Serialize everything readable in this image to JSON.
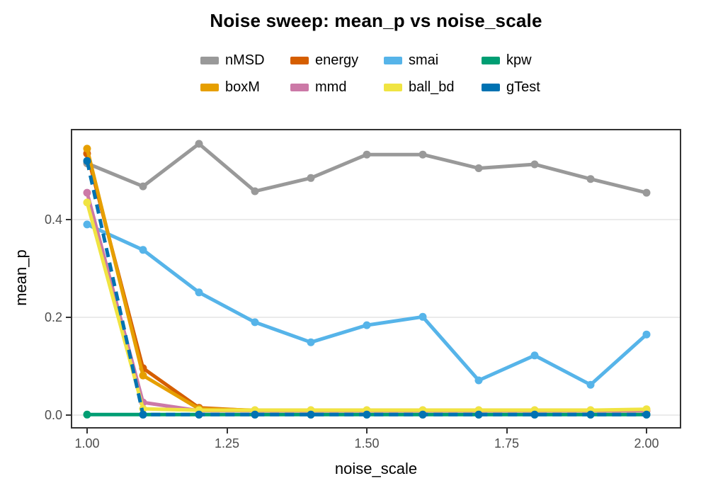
{
  "title": "Noise sweep: mean_p vs noise_scale",
  "colors": {
    "panel_border": "#333333",
    "gridline": "#ebebeb",
    "tick_text": "#4d4d4d",
    "text": "#000000",
    "background": "#ffffff"
  },
  "chart_data": {
    "type": "line",
    "title": "Noise sweep: mean_p vs noise_scale",
    "xlabel": "noise_scale",
    "ylabel": "mean_p",
    "grid": "horizontal-major",
    "legend_position": "top",
    "x": [
      1.0,
      1.1,
      1.2,
      1.3,
      1.4,
      1.5,
      1.6,
      1.7,
      1.8,
      1.9,
      2.0
    ],
    "xlim": [
      0.9734,
      2.0595
    ],
    "ylim": [
      -0.0246,
      0.5826
    ],
    "x_ticks": [
      {
        "value": 1.0,
        "label": "1.00"
      },
      {
        "value": 1.25,
        "label": "1.25"
      },
      {
        "value": 1.5,
        "label": "1.50"
      },
      {
        "value": 1.75,
        "label": "1.75"
      },
      {
        "value": 2.0,
        "label": "2.00"
      }
    ],
    "y_ticks": [
      {
        "value": 0.0,
        "label": "0.0"
      },
      {
        "value": 0.2,
        "label": "0.2"
      },
      {
        "value": 0.4,
        "label": "0.4"
      }
    ],
    "series": [
      {
        "name": "nMSD",
        "color": "#999999",
        "dash": "solid",
        "values": [
          0.515,
          0.468,
          0.555,
          0.458,
          0.485,
          0.533,
          0.533,
          0.505,
          0.513,
          0.483,
          0.455
        ]
      },
      {
        "name": "energy",
        "color": "#D55E00",
        "dash": "solid",
        "values": [
          0.535,
          0.096,
          0.015,
          0.009,
          0.009,
          0.009,
          0.009,
          0.009,
          0.009,
          0.009,
          0.009
        ]
      },
      {
        "name": "smai",
        "color": "#56B4E9",
        "dash": "solid",
        "values": [
          0.39,
          0.338,
          0.251,
          0.19,
          0.149,
          0.184,
          0.201,
          0.071,
          0.122,
          0.062,
          0.165
        ]
      },
      {
        "name": "kpw",
        "color": "#009E73",
        "dash": "solid",
        "values": [
          0.001,
          0.001,
          0.001,
          0.001,
          0.001,
          0.001,
          0.001,
          0.001,
          0.001,
          0.001,
          0.001
        ]
      },
      {
        "name": "boxM",
        "color": "#E69F00",
        "dash": "solid",
        "values": [
          0.545,
          0.081,
          0.013,
          0.01,
          0.01,
          0.01,
          0.01,
          0.01,
          0.01,
          0.01,
          0.01
        ]
      },
      {
        "name": "mmd",
        "color": "#CC79A7",
        "dash": "solid",
        "values": [
          0.455,
          0.026,
          0.009,
          0.009,
          0.009,
          0.009,
          0.009,
          0.009,
          0.009,
          0.009,
          0.009
        ]
      },
      {
        "name": "ball_bd",
        "color": "#F0E442",
        "dash": "solid",
        "values": [
          0.435,
          0.013,
          0.01,
          0.01,
          0.01,
          0.01,
          0.01,
          0.01,
          0.01,
          0.01,
          0.012
        ]
      },
      {
        "name": "gTest",
        "color": "#0072B2",
        "dash": "dashed",
        "values": [
          0.52,
          0.001,
          0.001,
          0.001,
          0.001,
          0.001,
          0.001,
          0.001,
          0.001,
          0.001,
          0.001
        ]
      }
    ],
    "legend_rows": [
      [
        "nMSD",
        "energy",
        "smai",
        "kpw"
      ],
      [
        "boxM",
        "mmd",
        "ball_bd",
        "gTest"
      ]
    ]
  }
}
